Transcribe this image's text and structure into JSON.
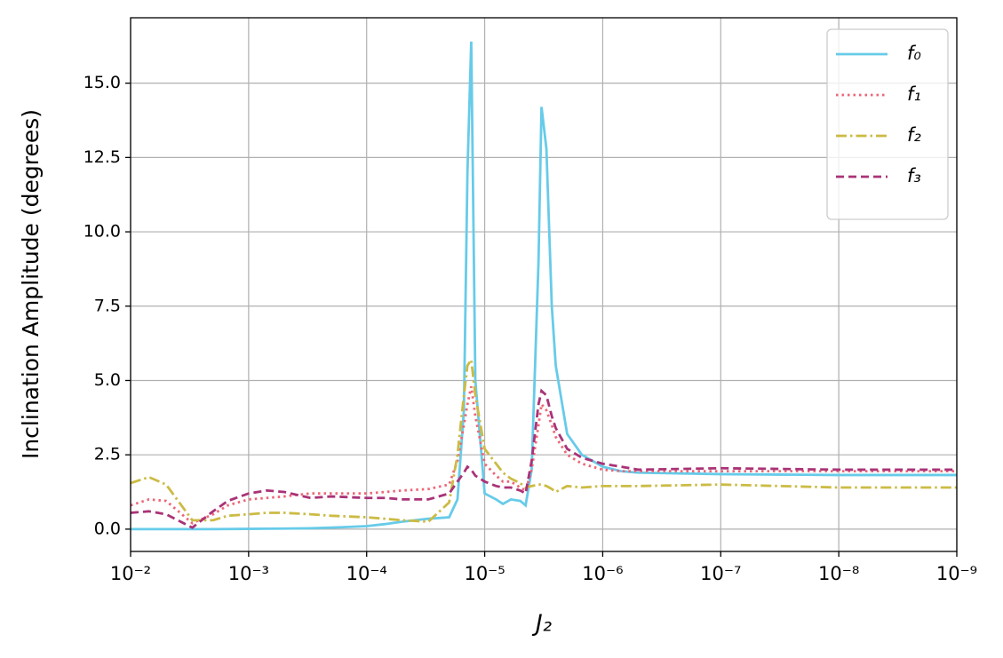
{
  "chart_data": {
    "type": "line",
    "xlabel": "J₂",
    "ylabel": "Inclination Amplitude (degrees)",
    "xscale": "log",
    "grid": true,
    "legend": "upper right",
    "xlim": [
      0.01,
      1e-09
    ],
    "ylim": [
      -0.75,
      17.2
    ],
    "xticks": [
      {
        "value": 0.01,
        "label": "10⁻²"
      },
      {
        "value": 0.001,
        "label": "10⁻³"
      },
      {
        "value": 0.0001,
        "label": "10⁻⁴"
      },
      {
        "value": 1e-05,
        "label": "10⁻⁵"
      },
      {
        "value": 1e-06,
        "label": "10⁻⁶"
      },
      {
        "value": 1e-07,
        "label": "10⁻⁷"
      },
      {
        "value": 1e-08,
        "label": "10⁻⁸"
      },
      {
        "value": 1e-09,
        "label": "10⁻⁹"
      }
    ],
    "yticks": [
      {
        "value": 0,
        "label": "0.0"
      },
      2.5,
      {
        "value": 5,
        "label": "5.0"
      },
      7.5,
      {
        "value": 10,
        "label": "10.0"
      },
      12.5,
      {
        "value": 15,
        "label": "15.0"
      }
    ],
    "x": [
      0.01,
      0.007,
      0.005,
      0.003,
      0.002,
      0.0015,
      0.001,
      0.0007,
      0.0005,
      0.0003,
      0.0002,
      0.0001,
      7e-05,
      5e-05,
      3e-05,
      2e-05,
      1.7e-05,
      1.5e-05,
      1.4e-05,
      1.3e-05,
      1.2e-05,
      1e-05,
      8e-06,
      7e-06,
      6e-06,
      5e-06,
      4.5e-06,
      4e-06,
      3.5e-06,
      3.3e-06,
      3e-06,
      2.7e-06,
      2.5e-06,
      2e-06,
      1.5e-06,
      1e-06,
      7e-07,
      5e-07,
      1e-07,
      1e-08,
      1e-09
    ],
    "series": [
      {
        "name": "f₀",
        "color": "#67cbe9",
        "linestyle": "solid",
        "values": [
          0,
          0,
          0,
          0,
          0,
          0.005,
          0.01,
          0.015,
          0.02,
          0.03,
          0.05,
          0.1,
          0.17,
          0.25,
          0.35,
          0.4,
          1.0,
          4,
          12,
          16.4,
          5,
          1.2,
          1.0,
          0.85,
          1.0,
          0.95,
          0.8,
          2.0,
          9,
          14.2,
          12.8,
          7.5,
          5.5,
          3.2,
          2.5,
          2.1,
          1.95,
          1.9,
          1.85,
          1.82,
          1.82
        ]
      },
      {
        "name": "f₁",
        "color": "#ee6677",
        "linestyle": "dotted",
        "values": [
          0.8,
          1.0,
          0.95,
          0.2,
          0.5,
          0.8,
          1.0,
          1.05,
          1.1,
          1.2,
          1.2,
          1.2,
          1.25,
          1.3,
          1.35,
          1.5,
          2.3,
          3.5,
          4.2,
          4.8,
          3.8,
          2.2,
          1.8,
          1.6,
          1.6,
          1.4,
          1.3,
          2.0,
          3.5,
          4.2,
          4.0,
          3.5,
          3.1,
          2.5,
          2.2,
          2.0,
          1.95,
          1.95,
          1.95,
          1.95,
          1.95
        ]
      },
      {
        "name": "f₂",
        "color": "#ccbb44",
        "linestyle": "dashdot",
        "values": [
          1.55,
          1.75,
          1.5,
          0.3,
          0.3,
          0.45,
          0.5,
          0.55,
          0.55,
          0.5,
          0.45,
          0.4,
          0.35,
          0.3,
          0.25,
          0.9,
          2.5,
          4.5,
          5.5,
          5.7,
          4.5,
          2.7,
          2.2,
          1.9,
          1.7,
          1.55,
          1.4,
          1.45,
          1.5,
          1.5,
          1.45,
          1.35,
          1.25,
          1.45,
          1.4,
          1.45,
          1.45,
          1.45,
          1.5,
          1.4,
          1.4
        ]
      },
      {
        "name": "f₃",
        "color": "#aa3377",
        "linestyle": "dashed",
        "values": [
          0.55,
          0.6,
          0.5,
          0.05,
          0.6,
          0.95,
          1.2,
          1.3,
          1.25,
          1.05,
          1.1,
          1.05,
          1.05,
          1.0,
          1.0,
          1.2,
          1.6,
          1.9,
          2.1,
          2.0,
          1.8,
          1.6,
          1.45,
          1.4,
          1.4,
          1.3,
          1.2,
          2.3,
          4.2,
          4.65,
          4.5,
          3.8,
          3.4,
          2.7,
          2.4,
          2.2,
          2.1,
          2.0,
          2.05,
          2.0,
          2.0
        ]
      }
    ]
  }
}
